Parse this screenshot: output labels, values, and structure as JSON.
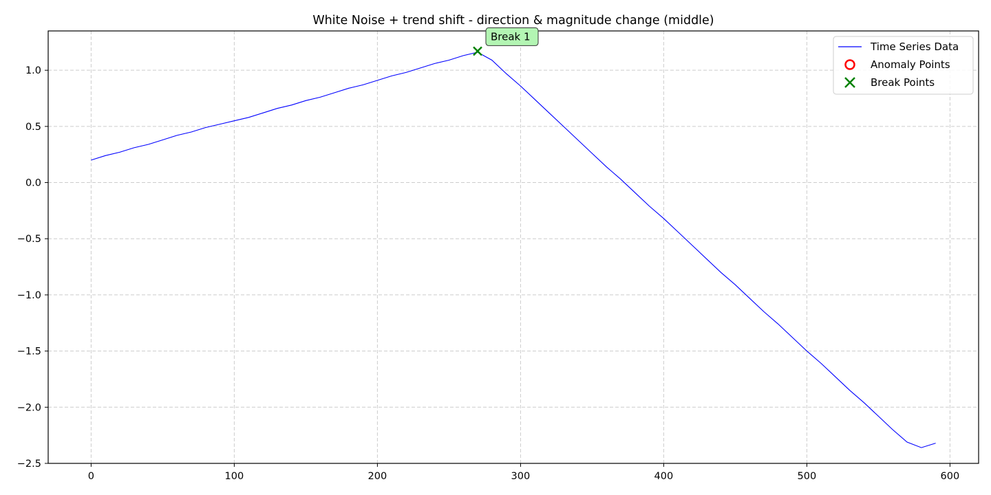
{
  "chart_data": {
    "type": "line",
    "title": "White Noise + trend shift - direction & magnitude change (middle)",
    "xlabel": "",
    "ylabel": "",
    "xlim": [
      -30,
      620
    ],
    "ylim": [
      -2.5,
      1.35
    ],
    "xticks": [
      0,
      100,
      200,
      300,
      400,
      500,
      600
    ],
    "xtick_labels": [
      "0",
      "100",
      "200",
      "300",
      "400",
      "500",
      "600"
    ],
    "yticks": [
      -2.5,
      -2.0,
      -1.5,
      -1.0,
      -0.5,
      0.0,
      0.5,
      1.0
    ],
    "ytick_labels": [
      "−2.5",
      "−2.0",
      "−1.5",
      "−1.0",
      "−0.5",
      "0.0",
      "0.5",
      "1.0"
    ],
    "grid": true,
    "legend_position": "top-right",
    "series": [
      {
        "name": "Time Series Data",
        "kind": "line",
        "color": "#0000ff",
        "x": [
          0,
          10,
          20,
          30,
          40,
          50,
          60,
          70,
          80,
          90,
          100,
          110,
          120,
          130,
          140,
          150,
          160,
          170,
          180,
          190,
          200,
          210,
          220,
          230,
          240,
          250,
          260,
          270,
          280,
          290,
          300,
          310,
          320,
          330,
          340,
          350,
          360,
          370,
          380,
          390,
          400,
          410,
          420,
          430,
          440,
          450,
          460,
          470,
          480,
          490,
          500,
          510,
          520,
          530,
          540,
          550,
          560,
          570,
          580,
          590
        ],
        "y": [
          0.2,
          0.24,
          0.27,
          0.31,
          0.34,
          0.38,
          0.42,
          0.45,
          0.49,
          0.52,
          0.55,
          0.58,
          0.62,
          0.66,
          0.69,
          0.73,
          0.76,
          0.8,
          0.84,
          0.87,
          0.91,
          0.95,
          0.98,
          1.02,
          1.06,
          1.09,
          1.13,
          1.16,
          1.09,
          0.97,
          0.86,
          0.74,
          0.62,
          0.5,
          0.38,
          0.26,
          0.14,
          0.03,
          -0.09,
          -0.21,
          -0.32,
          -0.44,
          -0.56,
          -0.68,
          -0.8,
          -0.91,
          -1.03,
          -1.15,
          -1.26,
          -1.38,
          -1.5,
          -1.61,
          -1.73,
          -1.85,
          -1.96,
          -2.08,
          -2.2,
          -2.31,
          -2.36,
          -2.32
        ]
      },
      {
        "name": "Anomaly Points",
        "kind": "scatter",
        "marker": "circle-open",
        "color": "#ff0000",
        "x": [],
        "y": []
      },
      {
        "name": "Break Points",
        "kind": "scatter",
        "marker": "x",
        "color": "#008000",
        "x": [
          270
        ],
        "y": [
          1.17
        ]
      }
    ],
    "annotations": [
      {
        "text": "Break 1",
        "x": 270,
        "y": 1.17,
        "box_color": "#b3f5b3"
      }
    ]
  }
}
